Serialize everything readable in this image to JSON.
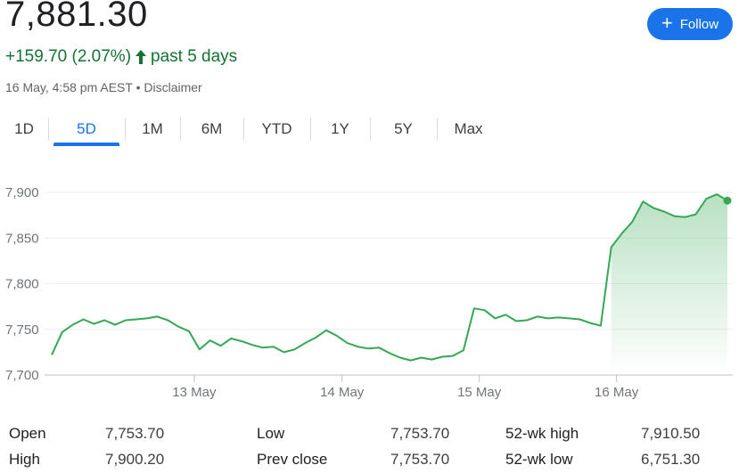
{
  "header": {
    "price": "7,881.30",
    "change": "+159.70 (2.07%)",
    "period": "past 5 days",
    "timestamp": "16 May, 4:58 pm AEST",
    "separator": "•",
    "disclaimer": "Disclaimer",
    "follow_label": "Follow"
  },
  "colors": {
    "positive": "#137333",
    "line": "#34a853",
    "accent": "#1a73e8"
  },
  "tabs": [
    "1D",
    "5D",
    "1M",
    "6M",
    "YTD",
    "1Y",
    "5Y",
    "Max"
  ],
  "active_tab": "5D",
  "chart_data": {
    "type": "area",
    "x_labels": [
      "13 May",
      "14 May",
      "15 May",
      "16 May"
    ],
    "y_ticks": [
      "7,900",
      "7,850",
      "7,800",
      "7,750",
      "7,700"
    ],
    "ylim": [
      7700,
      7900
    ],
    "grid": true,
    "series": [
      {
        "values": [
          7722,
          7747,
          7755,
          7761,
          7756,
          7760,
          7755,
          7760,
          7761,
          7762,
          7764,
          7760,
          7753,
          7748,
          7728,
          7738,
          7732,
          7740,
          7737,
          7733,
          7730,
          7731,
          7725,
          7728,
          7735,
          7741,
          7749,
          7743,
          7735,
          7731,
          7729,
          7730,
          7724,
          7719,
          7716,
          7719,
          7717,
          7720,
          7721,
          7727,
          7773,
          7771,
          7762,
          7766,
          7759,
          7760,
          7764,
          7762,
          7763,
          7762,
          7761,
          7757,
          7754,
          7840,
          7855,
          7868,
          7890,
          7883,
          7879,
          7874,
          7873,
          7876,
          7893,
          7898,
          7891
        ]
      }
    ],
    "day_ends": [
      13,
      27,
      40,
      53
    ]
  },
  "stats": [
    {
      "label": "Open",
      "value": "7,753.70"
    },
    {
      "label": "High",
      "value": "7,900.20"
    },
    {
      "label": "Low",
      "value": "7,753.70"
    },
    {
      "label": "Prev close",
      "value": "7,753.70"
    },
    {
      "label": "52-wk high",
      "value": "7,910.50"
    },
    {
      "label": "52-wk low",
      "value": "6,751.30"
    }
  ]
}
